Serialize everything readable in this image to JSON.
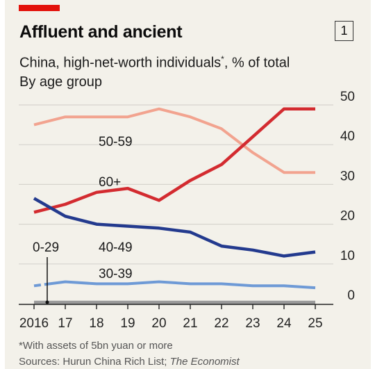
{
  "header": {
    "title": "Affluent and ancient",
    "chart_number": "1",
    "subtitle": "China, high-net-worth individuals",
    "subtitle_mark": "*",
    "subtitle_tail": ", % of total",
    "subtitle2": "By age group"
  },
  "footer": {
    "footnote": "*With assets of 5bn yuan or more",
    "sources_prefix": "Sources: Hurun China Rich List; ",
    "sources_italic": "The Economist"
  },
  "colors": {
    "background": "#f3f1ea",
    "accent": "#e3120b",
    "s50_59": "#f2a38f",
    "s60_plus": "#d32b30",
    "s40_49": "#233a8e",
    "s30_39": "#6e9ad6",
    "s0_29": "#9a9a9a"
  },
  "chart_data": {
    "type": "line",
    "x": [
      "2016",
      "17",
      "18",
      "19",
      "20",
      "21",
      "22",
      "23",
      "24",
      "25"
    ],
    "ylim": [
      0,
      50
    ],
    "yticks": [
      0,
      10,
      20,
      30,
      40,
      50
    ],
    "grid": true,
    "y_axis_side": "right",
    "series": [
      {
        "name": "50-59",
        "color": "#f2a38f",
        "values": [
          45,
          47,
          47,
          47,
          49,
          47,
          44,
          38,
          33,
          33
        ]
      },
      {
        "name": "60+",
        "color": "#d32b30",
        "values": [
          23,
          25,
          28,
          29,
          26,
          31,
          35,
          42,
          49,
          49
        ]
      },
      {
        "name": "40-49",
        "color": "#233a8e",
        "values": [
          26.5,
          22,
          20,
          19.5,
          19,
          18,
          14.5,
          13.5,
          12,
          13
        ]
      },
      {
        "name": "30-39",
        "color": "#6e9ad6",
        "values": [
          4.5,
          5.5,
          5,
          5,
          5.5,
          5,
          5,
          4.5,
          4.5,
          4
        ]
      },
      {
        "name": "0-29",
        "color": "#9a9a9a",
        "values": [
          0.3,
          0.3,
          0.3,
          0.3,
          0.3,
          0.3,
          0.3,
          0.3,
          0.3,
          0.3
        ]
      }
    ]
  }
}
